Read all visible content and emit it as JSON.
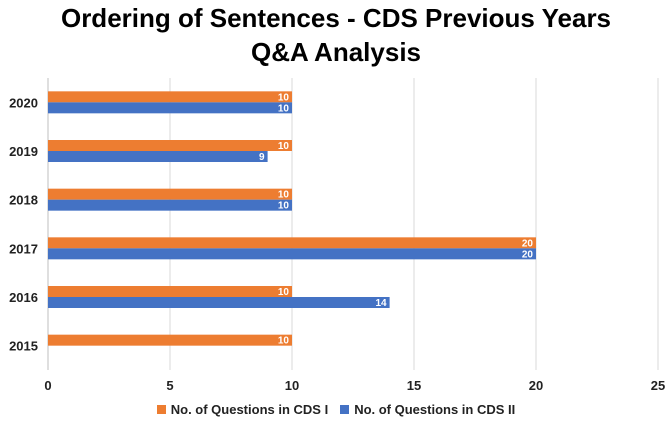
{
  "chart_data": {
    "type": "bar",
    "orientation": "horizontal",
    "title_line1": "Ordering of Sentences - CDS Previous Years",
    "title_line2": "Q&A Analysis",
    "categories": [
      "2020",
      "2019",
      "2018",
      "2017",
      "2016",
      "2015"
    ],
    "series": [
      {
        "name": "No. of Questions in CDS I",
        "color": "#ED7D31",
        "values": [
          10,
          10,
          10,
          20,
          10,
          10
        ]
      },
      {
        "name": "No. of Questions in CDS II",
        "color": "#4472C4",
        "values": [
          10,
          9,
          10,
          20,
          14,
          null
        ]
      }
    ],
    "xlim": [
      0,
      25
    ],
    "xticks": [
      "0",
      "5",
      "10",
      "15",
      "20",
      "25"
    ],
    "grid": "vertical",
    "legend_position": "bottom"
  }
}
